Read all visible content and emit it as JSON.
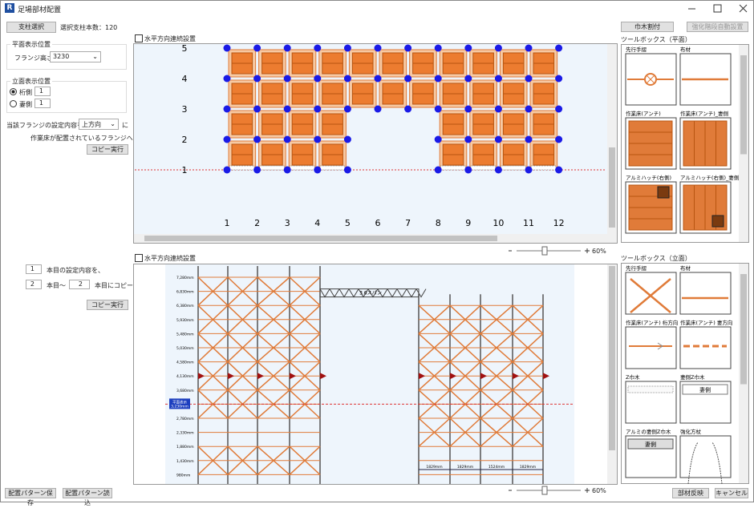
{
  "window": {
    "title": "足場部材配置"
  },
  "left_panel": {
    "select_button": "支柱選択",
    "count_label": "選択支柱本数：120",
    "plan_group": {
      "title": "平面表示位置",
      "flange_label": "フランジ高さ：",
      "flange_value": "3230"
    },
    "elev_group": {
      "title": "立面表示位置",
      "options": [
        {
          "label": "桁側",
          "value": "1"
        },
        {
          "label": "妻側",
          "value": "1"
        }
      ]
    },
    "copy": {
      "text1": "当該フランジの設定内容を、",
      "direction": "上方向",
      "text2": "に",
      "text3": "作業床が配置されているフランジへコピー",
      "button": "コピー実行"
    },
    "copy2": {
      "from": "1",
      "text1": "本目の設定内容を、",
      "start": "2",
      "text2": "本目～",
      "end": "2",
      "text3": "本目にコピー",
      "button": "コピー実行"
    }
  },
  "top_buttons": {
    "baseboard": "巾木割付",
    "stairs": "強化階段自動設置"
  },
  "plan": {
    "checkbox": "水平方向連続設置",
    "rows": [
      "5",
      "4",
      "3",
      "2",
      "1"
    ],
    "columns": [
      "1",
      "2",
      "3",
      "4",
      "5",
      "6",
      "7",
      "8",
      "9",
      "10",
      "11",
      "12"
    ],
    "zoom": "60%"
  },
  "elevation": {
    "checkbox": "水平方向連続設置",
    "heights": [
      "7,280mm",
      "6,830mm",
      "6,380mm",
      "5,930mm",
      "5,480mm",
      "5,030mm",
      "4,580mm",
      "4,130mm",
      "3,680mm",
      "3,230mm",
      "2,780mm",
      "2,330mm",
      "1,880mm",
      "1,430mm",
      "980mm"
    ],
    "marker": "平面表示",
    "span_label": "3.6スパン",
    "spans": [
      "1829mm",
      "1829mm",
      "1524mm",
      "1829mm"
    ],
    "zoom": "60%"
  },
  "toolbox_plan": {
    "title": "ツールボックス（平面）",
    "items": [
      "先行手摺",
      "布材",
      "作業床(アンチ)",
      "作業床(アンチ)_妻側",
      "アルミハッチ(右側)",
      "アルミハッチ(右側)_妻側"
    ]
  },
  "toolbox_elev": {
    "title": "ツールボックス（立面）",
    "items": [
      "先行手摺",
      "布材",
      "作業床(アンチ) 桁方向",
      "作業床(アンチ) 妻方向",
      "Z巾木",
      "妻側Z巾木",
      "アルミの妻側Z巾木",
      "強化方杖"
    ],
    "tag": "妻側"
  },
  "bottom": {
    "save": "配置パターン保存",
    "load": "配置パターン読込",
    "apply": "部材反映",
    "cancel": "キャンセル"
  }
}
